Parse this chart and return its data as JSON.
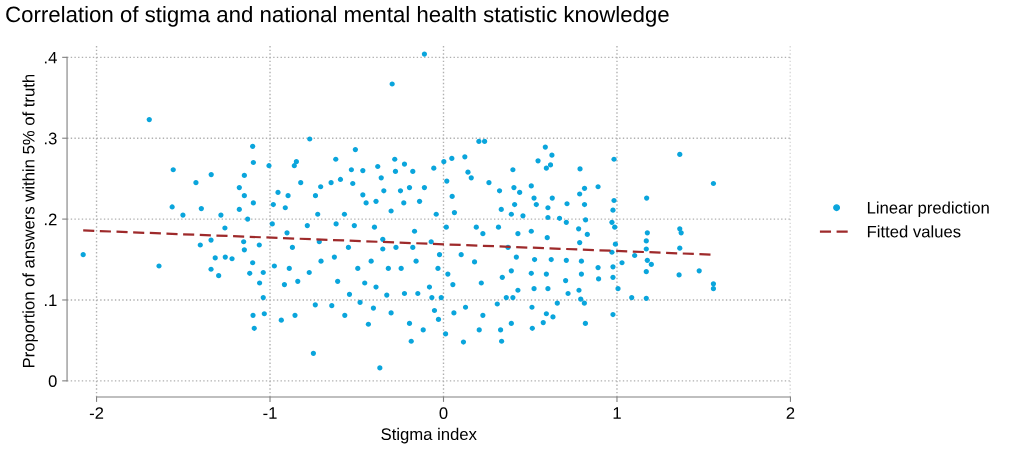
{
  "chart_data": {
    "type": "scatter",
    "title": "Correlation of stigma and national mental health statistic knowledge",
    "xlabel": "Stigma index",
    "ylabel": "Proportion of answers within 5% of truth",
    "xlim": [
      -2.17,
      2.0
    ],
    "ylim": [
      -0.02,
      0.415
    ],
    "xticks": [
      -2,
      -1,
      0,
      1,
      2
    ],
    "yticks": [
      0,
      {
        "value": 0.1,
        "label": ".1"
      },
      {
        "value": 0.2,
        "label": ".2"
      },
      {
        "value": 0.3,
        "label": ".3"
      },
      {
        "value": 0.4,
        "label": ".4"
      }
    ],
    "grid": true,
    "legend": "right",
    "series": [
      {
        "name": "Linear prediction",
        "color": "#0aa5dc",
        "marker": "circle",
        "x": [
          -2.077,
          -1.696,
          -1.64,
          -1.558,
          -1.564,
          -1.502,
          -1.427,
          -1.396,
          -1.402,
          -1.339,
          -1.34,
          -1.34,
          -1.316,
          -1.296,
          -1.283,
          -1.26,
          -1.258,
          -1.219,
          -1.177,
          -1.177,
          -1.148,
          -1.148,
          -1.152,
          -1.148,
          -1.117,
          -1.1,
          -1.096,
          -1.096,
          -1.129,
          -1.1,
          -1.098,
          -1.091,
          -1.062,
          -1.06,
          -1.039,
          -1.033,
          -1.006,
          -1.039,
          -0.981,
          -0.987,
          -0.954,
          -0.975,
          -0.935,
          -0.917,
          -0.912,
          -0.896,
          -0.902,
          -0.889,
          -0.86,
          -0.848,
          -0.871,
          -0.856,
          -0.823,
          -0.84,
          -0.785,
          -0.771,
          -0.75,
          -0.738,
          -0.774,
          -0.739,
          -0.725,
          -0.708,
          -0.716,
          -0.706,
          -0.621,
          -0.648,
          -0.619,
          -0.644,
          -0.629,
          -0.61,
          -0.594,
          -0.571,
          -0.569,
          -0.542,
          -0.548,
          -0.531,
          -0.508,
          -0.523,
          -0.514,
          -0.494,
          -0.465,
          -0.465,
          -0.481,
          -0.454,
          -0.433,
          -0.446,
          -0.417,
          -0.404,
          -0.389,
          -0.379,
          -0.359,
          -0.398,
          -0.389,
          -0.367,
          -0.344,
          -0.35,
          -0.35,
          -0.318,
          -0.327,
          -0.296,
          -0.302,
          -0.281,
          -0.277,
          -0.302,
          -0.274,
          -0.248,
          -0.225,
          -0.229,
          -0.244,
          -0.225,
          -0.196,
          -0.186,
          -0.177,
          -0.196,
          -0.167,
          -0.177,
          -0.158,
          -0.11,
          -0.117,
          -0.148,
          -0.138,
          -0.11,
          -0.056,
          -0.071,
          -0.052,
          -0.067,
          -0.081,
          -0.042,
          -0.032,
          0.002,
          0.048,
          0.123,
          0.204,
          0.237,
          0.141,
          0.019,
          0.16,
          0.262,
          0.05,
          0.063,
          0.016,
          0.189,
          0.227,
          -0.023,
          0.102,
          0.025,
          0.179,
          0.218,
          0.054,
          -0.013,
          0.127,
          0.06,
          -0.029,
          0.012,
          0.115,
          0.206,
          0.227,
          0.329,
          0.335,
          0.31,
          0.323,
          0.333,
          0.317,
          0.339,
          0.4,
          0.406,
          0.439,
          0.41,
          0.391,
          0.429,
          0.372,
          0.42,
          0.391,
          0.429,
          0.4,
          0.391,
          0.362,
          0.458,
          0.506,
          0.522,
          0.535,
          0.506,
          0.525,
          0.506,
          0.522,
          0.51,
          0.512,
          0.545,
          0.587,
          0.625,
          0.593,
          0.617,
          0.627,
          0.602,
          0.602,
          0.598,
          0.621,
          0.593,
          0.602,
          0.593,
          0.575,
          0.631,
          0.656,
          0.669,
          0.712,
          0.708,
          0.708,
          0.704,
          0.718,
          0.787,
          0.813,
          0.785,
          0.813,
          0.819,
          0.779,
          0.829,
          0.785,
          0.795,
          0.795,
          0.781,
          0.791,
          0.812,
          0.818,
          0.891,
          0.891,
          0.894,
          0.983,
          0.983,
          0.977,
          0.971,
          0.987,
          0.991,
          0.971,
          0.977,
          0.977,
          1.006,
          0.977,
          1.029,
          1.085,
          1.102,
          1.171,
          1.175,
          1.169,
          1.169,
          1.175,
          1.198,
          1.169,
          1.169,
          1.362,
          1.362,
          1.37,
          1.362,
          1.358,
          1.474,
          1.556,
          1.556,
          1.556
        ],
        "values": [
          0.156,
          0.323,
          0.142,
          0.261,
          0.215,
          0.205,
          0.245,
          0.213,
          0.168,
          0.255,
          0.174,
          0.138,
          0.152,
          0.13,
          0.205,
          0.189,
          0.153,
          0.151,
          0.239,
          0.212,
          0.254,
          0.229,
          0.172,
          0.162,
          0.133,
          0.29,
          0.27,
          0.22,
          0.2,
          0.146,
          0.081,
          0.065,
          0.168,
          0.121,
          0.103,
          0.083,
          0.266,
          0.134,
          0.218,
          0.194,
          0.233,
          0.142,
          0.075,
          0.119,
          0.214,
          0.229,
          0.183,
          0.139,
          0.266,
          0.271,
          0.165,
          0.081,
          0.245,
          0.123,
          0.192,
          0.299,
          0.034,
          0.229,
          0.134,
          0.094,
          0.206,
          0.24,
          0.172,
          0.148,
          0.274,
          0.245,
          0.194,
          0.093,
          0.153,
          0.123,
          0.249,
          0.206,
          0.081,
          0.107,
          0.165,
          0.261,
          0.286,
          0.244,
          0.192,
          0.139,
          0.26,
          0.23,
          0.097,
          0.121,
          0.07,
          0.22,
          0.148,
          0.09,
          0.222,
          0.265,
          0.251,
          0.19,
          0.116,
          0.016,
          0.235,
          0.175,
          0.163,
          0.139,
          0.106,
          0.367,
          0.084,
          0.274,
          0.259,
          0.21,
          0.165,
          0.235,
          0.268,
          0.22,
          0.139,
          0.108,
          0.071,
          0.049,
          0.259,
          0.239,
          0.185,
          0.165,
          0.148,
          0.404,
          0.063,
          0.108,
          0.222,
          0.239,
          0.263,
          0.172,
          0.087,
          0.103,
          0.116,
          0.206,
          0.139,
          0.271,
          0.275,
          0.277,
          0.296,
          0.296,
          0.258,
          0.247,
          0.251,
          0.245,
          0.228,
          0.208,
          0.19,
          0.19,
          0.182,
          0.156,
          0.156,
          0.132,
          0.147,
          0.121,
          0.119,
          0.103,
          0.091,
          0.084,
          0.076,
          0.058,
          0.048,
          0.063,
          0.081,
          0.063,
          0.049,
          0.095,
          0.235,
          0.212,
          0.19,
          0.128,
          0.261,
          0.239,
          0.233,
          0.218,
          0.206,
          0.182,
          0.165,
          0.153,
          0.136,
          0.112,
          0.103,
          0.071,
          0.103,
          0.204,
          0.241,
          0.226,
          0.218,
          0.185,
          0.15,
          0.133,
          0.114,
          0.091,
          0.065,
          0.272,
          0.289,
          0.279,
          0.263,
          0.267,
          0.226,
          0.214,
          0.202,
          0.177,
          0.15,
          0.132,
          0.114,
          0.083,
          0.072,
          0.079,
          0.096,
          0.201,
          0.219,
          0.196,
          0.149,
          0.124,
          0.108,
          0.262,
          0.238,
          0.231,
          0.218,
          0.199,
          0.188,
          0.181,
          0.171,
          0.148,
          0.132,
          0.112,
          0.101,
          0.096,
          0.071,
          0.24,
          0.14,
          0.126,
          0.274,
          0.223,
          0.211,
          0.196,
          0.19,
          0.169,
          0.159,
          0.141,
          0.128,
          0.114,
          0.082,
          0.146,
          0.103,
          0.155,
          0.226,
          0.183,
          0.173,
          0.163,
          0.149,
          0.144,
          0.135,
          0.102,
          0.28,
          0.188,
          0.183,
          0.164,
          0.131,
          0.136,
          0.244,
          0.12,
          0.114
        ]
      },
      {
        "name": "Fitted values",
        "type": "line",
        "color": "#9e2a2b",
        "line_style": "dashed",
        "marker": "none",
        "x": [
          -2.077,
          1.556
        ],
        "values": [
          0.186,
          0.156
        ]
      }
    ]
  }
}
